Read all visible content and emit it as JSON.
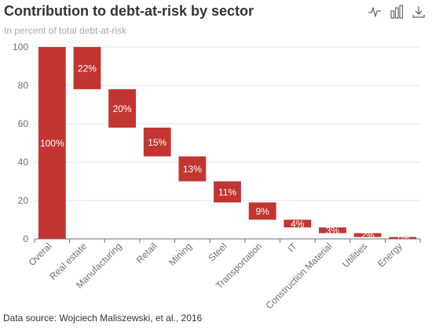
{
  "title": "Contribution to debt-at-risk by sector",
  "subtitle": "In percent of total debt-at-risk",
  "source": "Data source: Wojciech Maliszewski, et al., 2016",
  "toolbox": {
    "icons": [
      "line-chart-icon",
      "bar-chart-icon",
      "download-icon"
    ]
  },
  "colors": {
    "bar": "#c23531",
    "text": "#333333",
    "axis": "#6e7079",
    "grid": "#e0e6f1",
    "toolbox": "#666666"
  },
  "chart_data": {
    "type": "bar",
    "subtype": "waterfall",
    "categories": [
      "Overal",
      "Real estate",
      "Manufacturing",
      "Retail",
      "Mining",
      "Steel",
      "Transportation",
      "IT",
      "Construction Material",
      "Utilities",
      "Energy"
    ],
    "values": [
      100,
      22,
      20,
      15,
      13,
      11,
      9,
      4,
      3,
      2,
      1
    ],
    "bases": [
      0,
      78,
      58,
      43,
      30,
      19,
      10,
      6,
      3,
      1,
      0
    ],
    "data_labels": [
      "100%",
      "22%",
      "20%",
      "15%",
      "13%",
      "11%",
      "9%",
      "4%",
      "3%",
      "2%",
      "1%"
    ],
    "ylim": [
      0,
      100
    ],
    "yticks": [
      0,
      20,
      40,
      60,
      80,
      100
    ],
    "grid": true,
    "legend": "none"
  }
}
